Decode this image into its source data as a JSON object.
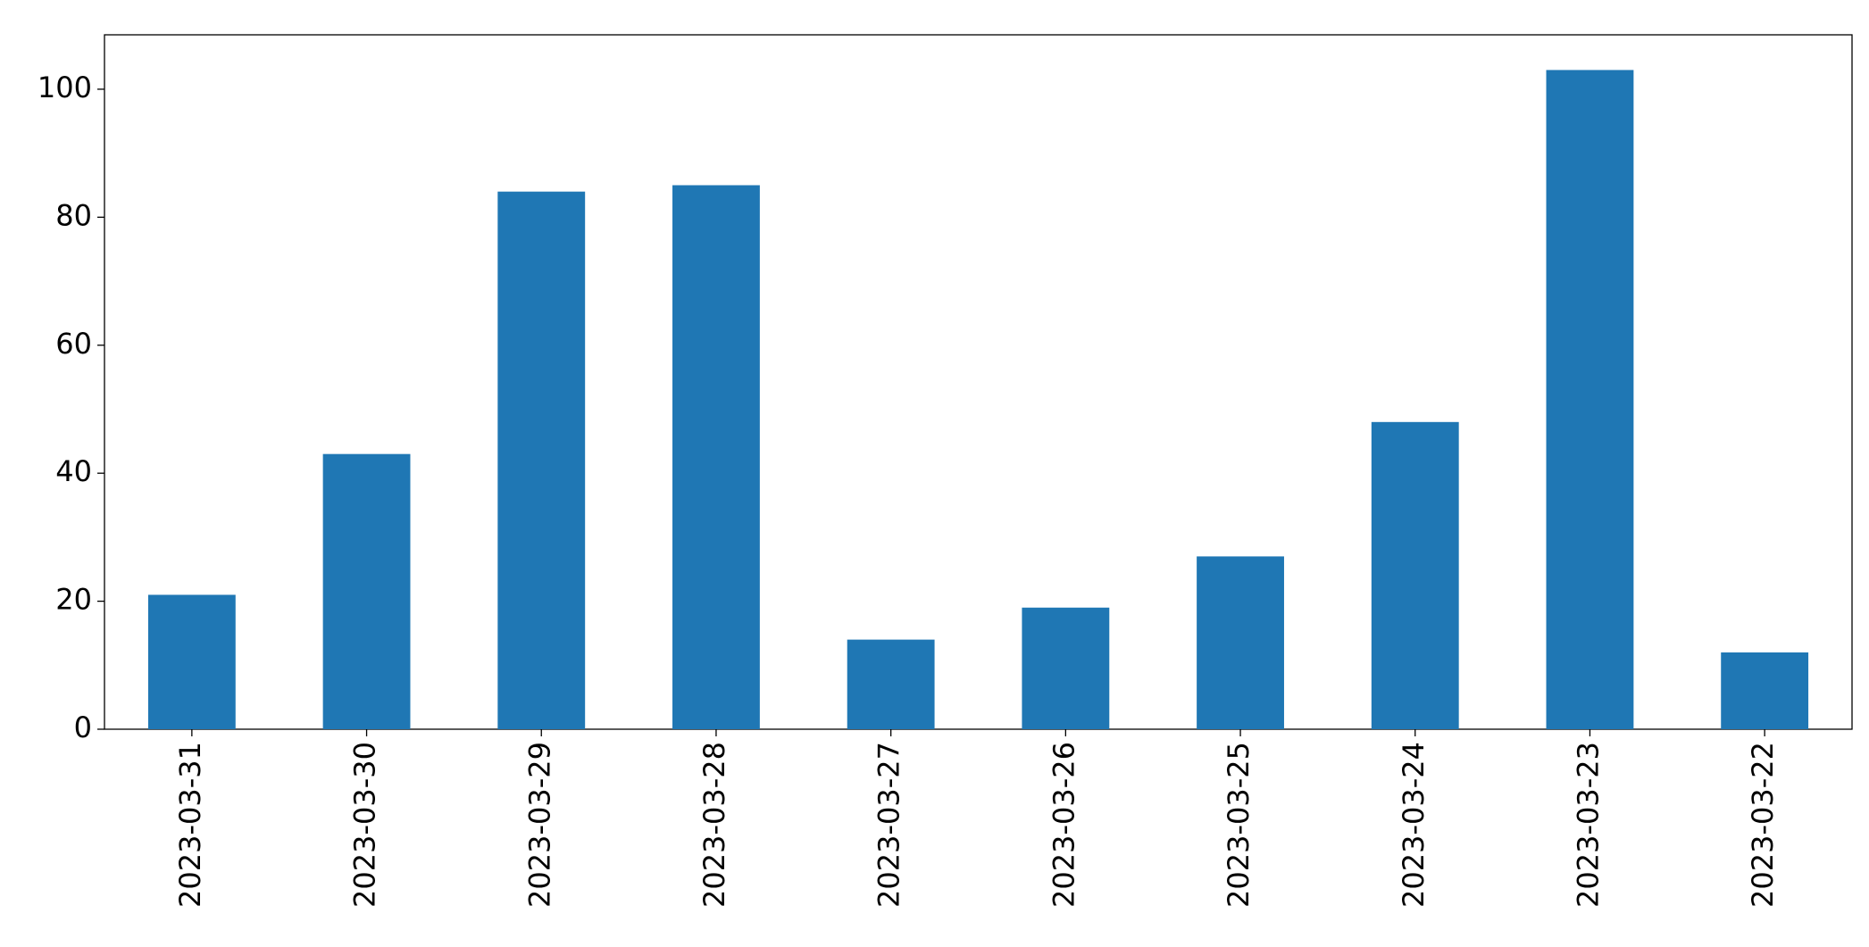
{
  "chart_data": {
    "type": "bar",
    "categories": [
      "2023-03-31",
      "2023-03-30",
      "2023-03-29",
      "2023-03-28",
      "2023-03-27",
      "2023-03-26",
      "2023-03-25",
      "2023-03-24",
      "2023-03-23",
      "2023-03-22"
    ],
    "values": [
      21,
      43,
      84,
      85,
      14,
      19,
      27,
      48,
      103,
      12
    ],
    "color": "#1f77b4",
    "ylim": [
      0,
      108.5
    ],
    "yticks": [
      0,
      20,
      40,
      60,
      80,
      100
    ],
    "grid": false
  }
}
